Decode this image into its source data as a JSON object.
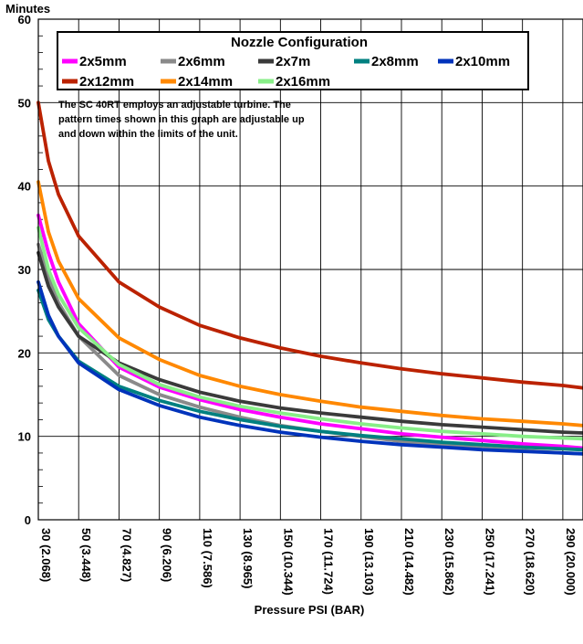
{
  "chart_data": {
    "type": "line",
    "title": "",
    "ylabel_top": "Minutes",
    "xlabel": "Pressure PSI (BAR)",
    "xlim": [
      30,
      300
    ],
    "ylim": [
      0,
      60
    ],
    "y_ticks": [
      0,
      10,
      20,
      30,
      40,
      50,
      60
    ],
    "x_ticks": [
      {
        "value": 30,
        "label": "30 (2.068)"
      },
      {
        "value": 50,
        "label": "50 (3.448)"
      },
      {
        "value": 70,
        "label": "70 (4.827)"
      },
      {
        "value": 90,
        "label": "90 (6.206)"
      },
      {
        "value": 110,
        "label": "110 (7.586)"
      },
      {
        "value": 130,
        "label": "130 (8.965)"
      },
      {
        "value": 150,
        "label": "150 (10.344)"
      },
      {
        "value": 170,
        "label": "170 (11.724)"
      },
      {
        "value": 190,
        "label": "190 (13.103)"
      },
      {
        "value": 210,
        "label": "210 (14.482)"
      },
      {
        "value": 230,
        "label": "230 (15.862)"
      },
      {
        "value": 250,
        "label": "250 (17.241)"
      },
      {
        "value": 270,
        "label": "270 (18.620)"
      },
      {
        "value": 290,
        "label": "290 (20.000)"
      }
    ],
    "grid": true,
    "legend": {
      "title": "Nozzle Configuration",
      "placement": "top-left-inside",
      "note": [
        "The SC 40RT employs an adjustable turbine.  The",
        "pattern times shown in this graph are adjustable up",
        "and down within the limits of the unit."
      ]
    },
    "series": [
      {
        "name": "2x5mm",
        "color": "#ff00ff",
        "x": [
          30,
          35,
          40,
          50,
          70,
          90,
          110,
          130,
          150,
          170,
          190,
          210,
          230,
          250,
          270,
          290,
          300
        ],
        "y": [
          36.5,
          32.0,
          28.5,
          23.5,
          18.3,
          15.9,
          14.4,
          13.2,
          12.3,
          11.5,
          10.9,
          10.3,
          9.9,
          9.5,
          9.1,
          8.8,
          8.6
        ]
      },
      {
        "name": "2x6mm",
        "color": "#8a8a8a",
        "x": [
          30,
          35,
          40,
          50,
          70,
          90,
          110,
          130,
          150,
          170,
          190,
          210,
          230,
          250,
          270,
          290,
          300
        ],
        "y": [
          33.0,
          29.0,
          26.0,
          22.0,
          17.3,
          15.0,
          13.5,
          12.3,
          11.3,
          10.6,
          10.0,
          9.4,
          9.0,
          8.6,
          8.3,
          8.0,
          7.9
        ]
      },
      {
        "name": "2x7m",
        "color": "#3a3a3a",
        "x": [
          30,
          35,
          40,
          50,
          70,
          90,
          110,
          130,
          150,
          170,
          190,
          210,
          230,
          250,
          270,
          290,
          300
        ],
        "y": [
          32.0,
          28.0,
          25.5,
          22.0,
          18.8,
          16.8,
          15.3,
          14.2,
          13.4,
          12.8,
          12.3,
          11.8,
          11.4,
          11.1,
          10.8,
          10.5,
          10.4
        ]
      },
      {
        "name": "2x8mm",
        "color": "#008080",
        "x": [
          30,
          35,
          40,
          50,
          70,
          90,
          110,
          130,
          150,
          170,
          190,
          210,
          230,
          250,
          270,
          290,
          300
        ],
        "y": [
          27.5,
          24.0,
          22.0,
          19.0,
          16.0,
          14.3,
          13.0,
          12.0,
          11.2,
          10.6,
          10.1,
          9.7,
          9.3,
          9.0,
          8.7,
          8.5,
          8.4
        ]
      },
      {
        "name": "2x10mm",
        "color": "#0033bb",
        "x": [
          30,
          35,
          40,
          50,
          70,
          90,
          110,
          130,
          150,
          170,
          190,
          210,
          230,
          250,
          270,
          290,
          300
        ],
        "y": [
          28.5,
          24.5,
          22.0,
          18.8,
          15.6,
          13.7,
          12.3,
          11.3,
          10.5,
          9.9,
          9.4,
          9.0,
          8.7,
          8.4,
          8.2,
          8.0,
          7.9
        ]
      },
      {
        "name": "2x12mm",
        "color": "#bb2200",
        "x": [
          30,
          35,
          40,
          50,
          70,
          90,
          110,
          130,
          150,
          170,
          190,
          210,
          230,
          250,
          270,
          290,
          300
        ],
        "y": [
          50.0,
          43.0,
          39.0,
          34.0,
          28.5,
          25.5,
          23.3,
          21.8,
          20.6,
          19.6,
          18.8,
          18.1,
          17.5,
          17.0,
          16.5,
          16.1,
          15.8
        ]
      },
      {
        "name": "2x14mm",
        "color": "#ff8800",
        "x": [
          30,
          35,
          40,
          50,
          70,
          90,
          110,
          130,
          150,
          170,
          190,
          210,
          230,
          250,
          270,
          290,
          300
        ],
        "y": [
          40.5,
          34.5,
          31.0,
          26.5,
          21.8,
          19.2,
          17.3,
          16.0,
          15.0,
          14.2,
          13.5,
          13.0,
          12.5,
          12.1,
          11.8,
          11.5,
          11.3
        ]
      },
      {
        "name": "2x16mm",
        "color": "#88ee88",
        "x": [
          30,
          35,
          40,
          50,
          70,
          90,
          110,
          130,
          150,
          170,
          190,
          210,
          230,
          250,
          270,
          290,
          300
        ],
        "y": [
          35.0,
          30.0,
          27.0,
          23.0,
          18.6,
          16.2,
          14.7,
          13.6,
          12.8,
          12.1,
          11.5,
          11.0,
          10.6,
          10.3,
          10.0,
          9.8,
          9.7
        ]
      }
    ]
  }
}
